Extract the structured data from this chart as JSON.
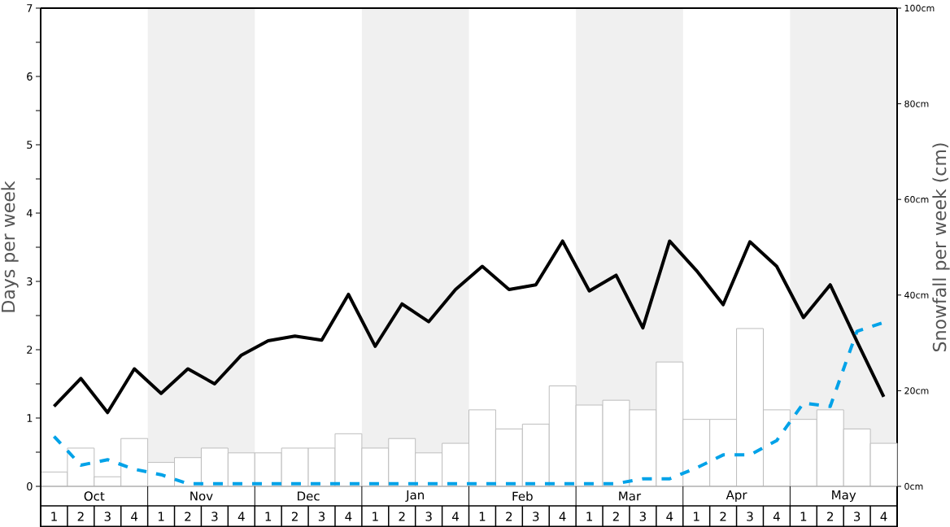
{
  "chart_data": {
    "type": "bar",
    "ylabel": "Days per week",
    "y2label": "Snowfall per week (cm)",
    "categories": [
      "1",
      "2",
      "3",
      "4",
      "1",
      "2",
      "3",
      "4",
      "1",
      "2",
      "3",
      "4",
      "1",
      "2",
      "3",
      "4",
      "1",
      "2",
      "3",
      "4",
      "1",
      "2",
      "3",
      "4",
      "1",
      "2",
      "3",
      "4",
      "1",
      "2",
      "3",
      "4"
    ],
    "annotations": [
      "Oct",
      "Nov",
      "Dec",
      "Jan",
      "Feb",
      "Mar",
      "Apr",
      "May"
    ],
    "ylim": [
      0,
      7
    ],
    "yticks": [
      0,
      {
        "value": 0.5,
        "label": null
      },
      1,
      {
        "value": 1.5,
        "label": null
      },
      2,
      {
        "value": 2.5,
        "label": null
      },
      3,
      {
        "value": 3.5,
        "label": null
      },
      4,
      {
        "value": 4.5,
        "label": null
      },
      5,
      {
        "value": 5.5,
        "label": null
      },
      6,
      {
        "value": 6.5,
        "label": null
      },
      7
    ],
    "y2lim": [
      0,
      100
    ],
    "y2ticks": [
      {
        "value": 0,
        "label": "0cm"
      },
      {
        "value": 20,
        "label": "20cm"
      },
      {
        "value": 40,
        "label": "40cm"
      },
      {
        "value": 60,
        "label": "60cm"
      },
      {
        "value": 80,
        "label": "80cm"
      },
      {
        "value": 100,
        "label": "100cm"
      }
    ],
    "series": [
      {
        "axis": "y2",
        "color": "#ffffff",
        "values": [
          3,
          8,
          2,
          10,
          5,
          6,
          8,
          7,
          7,
          8,
          8,
          11,
          8,
          10,
          7,
          9,
          16,
          12,
          13,
          21,
          17,
          18,
          16,
          26,
          14,
          14,
          33,
          16,
          14,
          16,
          12,
          9
        ]
      },
      {
        "type": "line",
        "color": "#000000",
        "values": [
          1.17,
          1.58,
          1.08,
          1.72,
          1.36,
          1.72,
          1.5,
          1.92,
          2.13,
          2.2,
          2.14,
          2.81,
          2.05,
          2.67,
          2.41,
          2.88,
          3.22,
          2.88,
          2.95,
          3.59,
          2.86,
          3.09,
          2.32,
          3.59,
          3.16,
          2.66,
          3.58,
          3.22,
          2.47,
          2.95,
          2.12,
          1.31
        ]
      },
      {
        "type": "line",
        "color": "#00a2e8",
        "line_style": "dashed",
        "values": [
          0.73,
          0.31,
          0.39,
          0.25,
          0.17,
          0.04,
          0.04,
          0.04,
          0.04,
          0.04,
          0.04,
          0.04,
          0.04,
          0.04,
          0.04,
          0.04,
          0.04,
          0.04,
          0.04,
          0.04,
          0.04,
          0.04,
          0.11,
          0.11,
          0.27,
          0.46,
          0.46,
          0.67,
          1.22,
          1.17,
          2.27,
          2.4
        ]
      }
    ]
  }
}
